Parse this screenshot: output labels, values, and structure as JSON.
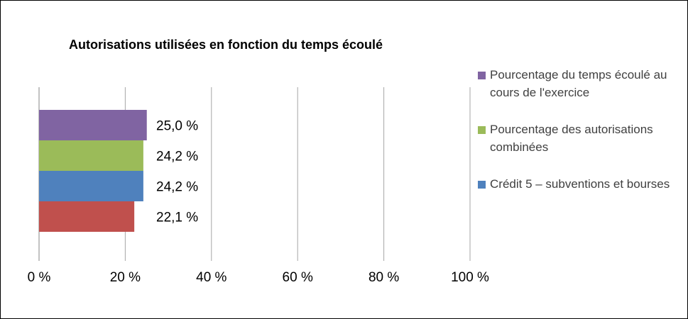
{
  "chart_data": {
    "type": "bar",
    "orientation": "horizontal",
    "title": "Autorisations utilisées en fonction du temps écoulé",
    "xlim": [
      0,
      100
    ],
    "x_ticks": [
      "0 %",
      "20 %",
      "40 %",
      "60 %",
      "80 %",
      "100 %"
    ],
    "x_tick_values": [
      0,
      20,
      40,
      60,
      80,
      100
    ],
    "grid": true,
    "legend_position": "right",
    "series": [
      {
        "name": "Pourcentage du temps écoulé au cours de l'exercice",
        "value": 25.0,
        "label": "25,0 %",
        "color": "#8064A2"
      },
      {
        "name": "Pourcentage des autorisations combinées",
        "value": 24.2,
        "label": "24,2 %",
        "color": "#9BBB59"
      },
      {
        "name": "Crédit 5 – subventions et bourses",
        "value": 24.2,
        "label": "24,2 %",
        "color": "#4F81BD"
      },
      {
        "name": "",
        "value": 22.1,
        "label": "22,1 %",
        "color": "#C0504D"
      }
    ],
    "legend": [
      {
        "label": "Pourcentage du temps écoulé au cours de l'exercice",
        "color": "#8064A2"
      },
      {
        "label": "Pourcentage des autorisations combinées",
        "color": "#9BBB59"
      },
      {
        "label": "Crédit 5 – subventions et bourses",
        "color": "#4F81BD"
      }
    ]
  }
}
